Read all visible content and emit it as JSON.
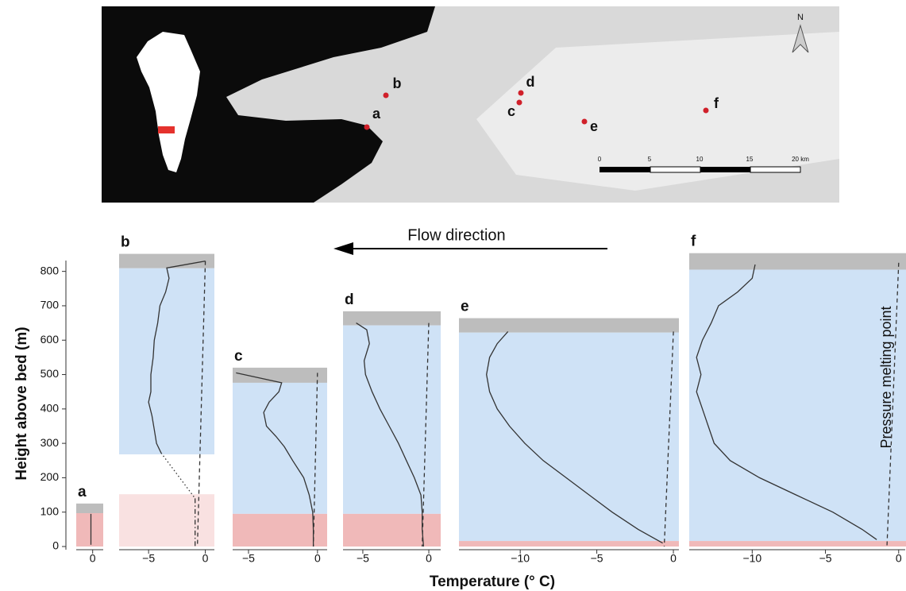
{
  "map": {
    "north": "N",
    "sites": [
      {
        "label": "a"
      },
      {
        "label": "b"
      },
      {
        "label": "c"
      },
      {
        "label": "d"
      },
      {
        "label": "e"
      },
      {
        "label": "f"
      }
    ],
    "scale_labels": [
      "0",
      "5",
      "10",
      "15",
      "20 km"
    ]
  },
  "figure": {
    "xlabel": "Temperature (° C)",
    "annotation": "Flow direction"
  },
  "chart_data": [
    {
      "type": "line",
      "label": "a",
      "ylabel": "Height above bed (m)",
      "ylim": [
        0,
        850
      ],
      "yticks": [
        0,
        100,
        200,
        300,
        400,
        500,
        600,
        700,
        800
      ],
      "xlim": [
        -1.4,
        0.9
      ],
      "xticks": [
        0
      ],
      "bands": [
        {
          "from": 97,
          "to": 125,
          "color": "#bdbdbd"
        },
        {
          "from": 0,
          "to": 97,
          "color": "#f0b9b9"
        }
      ],
      "series": [
        {
          "style": "solid",
          "color": "#333333",
          "x": [
            -0.15,
            -0.15
          ],
          "y": [
            95,
            5
          ]
        }
      ]
    },
    {
      "type": "line",
      "label": "b",
      "ylim": [
        0,
        850
      ],
      "xlim": [
        -7.6,
        0.8
      ],
      "xticks": [
        {
          "value": -5,
          "label": "−5"
        },
        0
      ],
      "bands": [
        {
          "from": 809,
          "to": 851,
          "color": "#bdbdbd"
        },
        {
          "from": 268,
          "to": 809,
          "color": "#cfe2f6"
        },
        {
          "from": 0,
          "to": 152,
          "color": "#f9e1e1"
        }
      ],
      "series": [
        {
          "style": "solid",
          "color": "#333333",
          "x": [
            0,
            -3.4,
            -3.2,
            -3.5,
            -4,
            -4.2,
            -4.5,
            -4.6,
            -4.8,
            -4.8,
            -5,
            -4.7,
            -4.5,
            -4.3,
            -3.9
          ],
          "y": [
            830,
            810,
            780,
            740,
            700,
            650,
            600,
            550,
            500,
            450,
            420,
            380,
            340,
            300,
            272
          ]
        },
        {
          "style": "dotted",
          "color": "#333333",
          "x": [
            -3.9,
            -0.9
          ],
          "y": [
            272,
            140
          ]
        },
        {
          "style": "dashdot",
          "color": "#333333",
          "x": [
            -0.9,
            -0.9
          ],
          "y": [
            140,
            0
          ]
        },
        {
          "style": "dashed",
          "color": "#333333",
          "x": [
            0,
            -0.7
          ],
          "y": [
            830,
            0
          ]
        }
      ]
    },
    {
      "type": "line",
      "label": "c",
      "ylim": [
        0,
        850
      ],
      "xlim": [
        -6.15,
        0.7
      ],
      "xticks": [
        {
          "value": -5,
          "label": "−5"
        },
        0
      ],
      "bands": [
        {
          "from": 476,
          "to": 520,
          "color": "#bdbdbd"
        },
        {
          "from": 95,
          "to": 476,
          "color": "#cfe2f6"
        },
        {
          "from": 0,
          "to": 95,
          "color": "#f0b9b9"
        }
      ],
      "series": [
        {
          "style": "solid",
          "color": "#333333",
          "x": [
            -5.9,
            -2.6,
            -2.8,
            -3.5,
            -3.9,
            -3.7,
            -3,
            -2.4,
            -1.8,
            -1,
            -0.6,
            -0.35,
            -0.3,
            -0.3
          ],
          "y": [
            505,
            476,
            450,
            420,
            390,
            350,
            320,
            290,
            250,
            200,
            150,
            100,
            50,
            0
          ]
        },
        {
          "style": "dashed",
          "color": "#333333",
          "x": [
            0,
            -0.3
          ],
          "y": [
            505,
            0
          ]
        }
      ]
    },
    {
      "type": "line",
      "label": "d",
      "ylim": [
        0,
        850
      ],
      "xlim": [
        -6.5,
        0.9
      ],
      "xticks": [
        {
          "value": -5,
          "label": "−5"
        },
        0
      ],
      "bands": [
        {
          "from": 643,
          "to": 684,
          "color": "#bdbdbd"
        },
        {
          "from": 95,
          "to": 643,
          "color": "#cfe2f6"
        },
        {
          "from": 0,
          "to": 95,
          "color": "#f0b9b9"
        }
      ],
      "series": [
        {
          "style": "solid",
          "color": "#333333",
          "x": [
            -5.5,
            -4.7,
            -4.5,
            -4.9,
            -4.8,
            -4.3,
            -3.7,
            -3,
            -2.3,
            -1.7,
            -1.1,
            -0.6,
            -0.5,
            -0.5,
            -0.4
          ],
          "y": [
            650,
            630,
            590,
            540,
            500,
            450,
            400,
            350,
            300,
            250,
            200,
            150,
            100,
            50,
            0
          ]
        },
        {
          "style": "dashed",
          "color": "#333333",
          "x": [
            0,
            -0.5
          ],
          "y": [
            650,
            0
          ]
        }
      ]
    },
    {
      "type": "line",
      "label": "e",
      "ylim": [
        0,
        850
      ],
      "xlim": [
        -14,
        0.36
      ],
      "xticks": [
        {
          "value": -10,
          "label": "−10"
        },
        {
          "value": -5,
          "label": "−5"
        },
        0
      ],
      "bands": [
        {
          "from": 622,
          "to": 664,
          "color": "#bdbdbd"
        },
        {
          "from": 16,
          "to": 622,
          "color": "#cfe2f6"
        },
        {
          "from": 0,
          "to": 16,
          "color": "#f0b9b9"
        }
      ],
      "series": [
        {
          "style": "solid",
          "color": "#333333",
          "x": [
            -10.8,
            -11.5,
            -12,
            -12.2,
            -12,
            -11.5,
            -10.7,
            -9.7,
            -8.5,
            -7,
            -5.5,
            -4,
            -2.3,
            -0.7
          ],
          "y": [
            625,
            590,
            550,
            500,
            450,
            400,
            350,
            300,
            250,
            200,
            150,
            100,
            50,
            10
          ]
        },
        {
          "style": "dashed",
          "color": "#333333",
          "x": [
            0,
            -0.6
          ],
          "y": [
            625,
            0
          ]
        }
      ]
    },
    {
      "type": "line",
      "label": "f",
      "ylim": [
        0,
        850
      ],
      "xlim": [
        -14.3,
        0.5
      ],
      "xticks": [
        {
          "value": -10,
          "label": "−10"
        },
        {
          "value": -5,
          "label": "−5"
        },
        0
      ],
      "note": "Pressure melting point",
      "bands": [
        {
          "from": 805,
          "to": 853,
          "color": "#bdbdbd"
        },
        {
          "from": 16,
          "to": 805,
          "color": "#cfe2f6"
        },
        {
          "from": 0,
          "to": 16,
          "color": "#f0b9b9"
        }
      ],
      "series": [
        {
          "style": "solid",
          "color": "#333333",
          "x": [
            -9.8,
            -10,
            -11,
            -12.3,
            -12.8,
            -13.4,
            -13.8,
            -13.5,
            -13.8,
            -13.4,
            -13,
            -12.6,
            -11.5,
            -9.5,
            -7,
            -4.5,
            -2.5,
            -1.5
          ],
          "y": [
            820,
            780,
            740,
            700,
            650,
            600,
            550,
            500,
            450,
            400,
            350,
            300,
            250,
            200,
            150,
            100,
            50,
            20
          ]
        },
        {
          "style": "dashed",
          "color": "#333333",
          "x": [
            0,
            -0.8
          ],
          "y": [
            825,
            0
          ]
        }
      ]
    }
  ]
}
